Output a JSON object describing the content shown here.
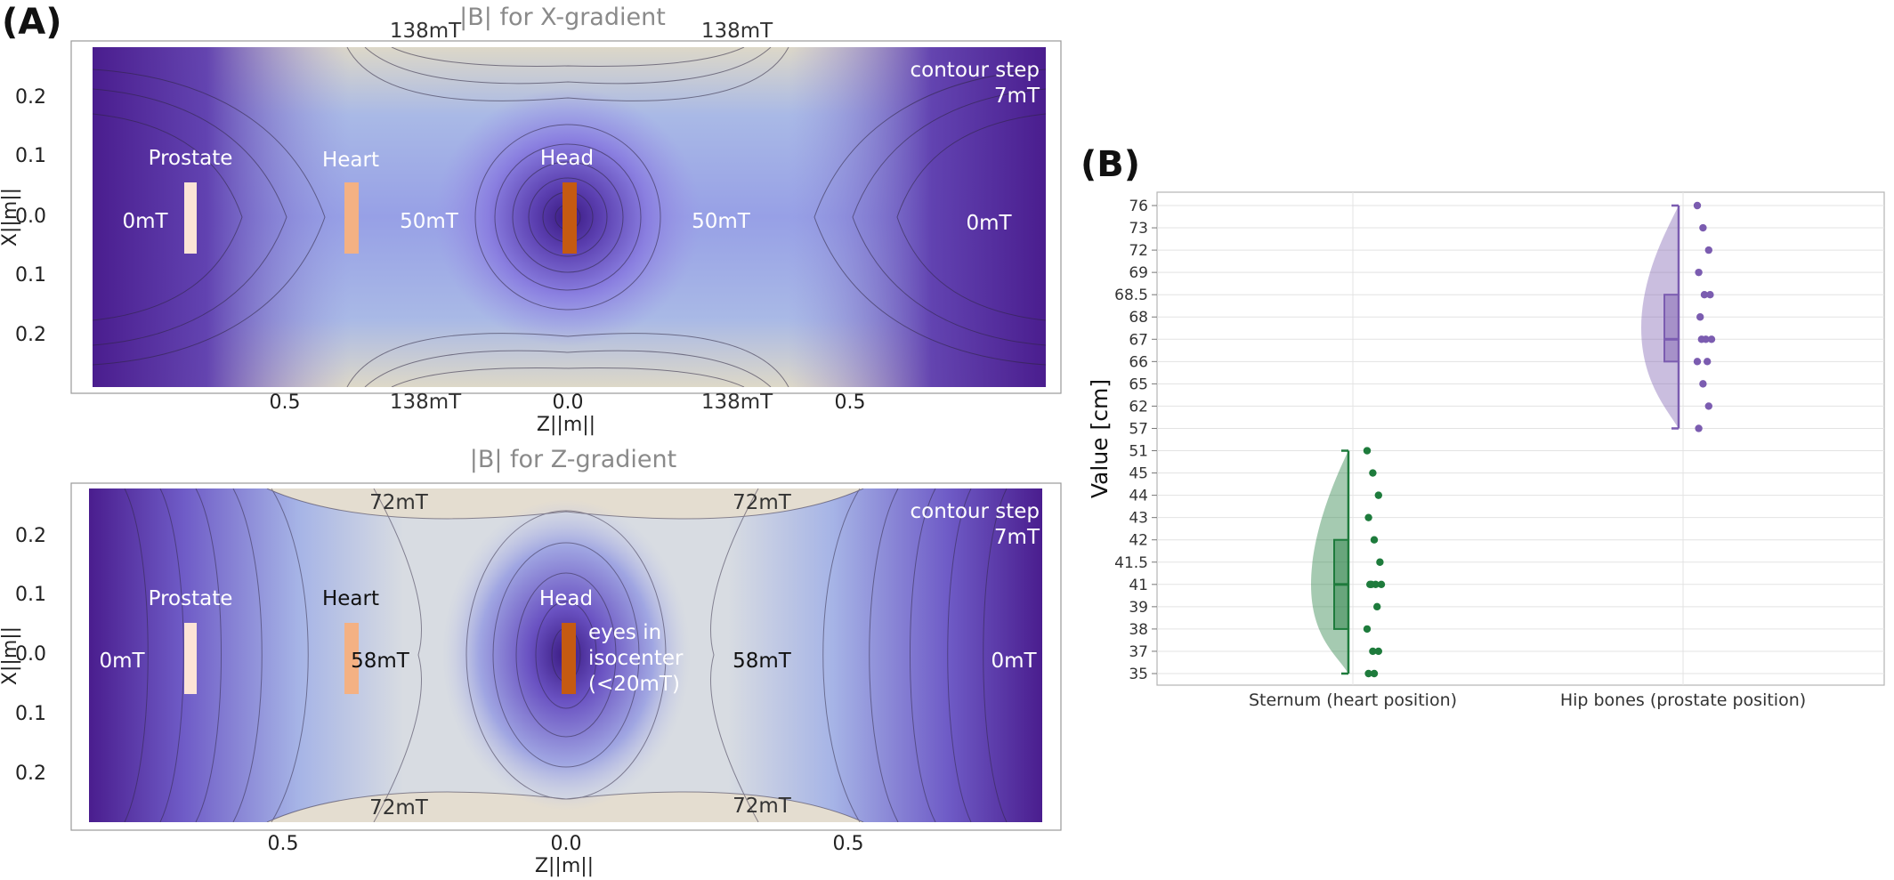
{
  "panels": {
    "a": "(A)",
    "b": "(B)"
  },
  "map_x": {
    "title": "|B| for X-gradient",
    "xlabel": "Z||m||",
    "ylabel": "X||m||",
    "xticks": [
      "0.5",
      "0.0",
      "0.5"
    ],
    "yticks": [
      "0.2",
      "0.1",
      "0.0",
      "0.1",
      "0.2"
    ],
    "contour_note": [
      "contour step",
      "7mT"
    ],
    "organs": [
      "Prostate",
      "Heart",
      "Head"
    ],
    "field_labels": {
      "top_left": "138mT",
      "top_right": "138mT",
      "bottom_left": "138mT",
      "bottom_right": "138mT",
      "left": "0mT",
      "mid_left": "50mT",
      "mid_right": "50mT",
      "right": "0mT"
    }
  },
  "map_z": {
    "title": "|B| for Z-gradient",
    "xlabel": "Z||m||",
    "ylabel": "X||m||",
    "xticks": [
      "0.5",
      "0.0",
      "0.5"
    ],
    "yticks": [
      "0.2",
      "0.1",
      "0.0",
      "0.1",
      "0.2"
    ],
    "contour_note": [
      "contour step",
      "7mT"
    ],
    "organs": [
      "Prostate",
      "Heart",
      "Head"
    ],
    "eyes_note": [
      "eyes in",
      "isocenter",
      "(<20mT)"
    ],
    "field_labels": {
      "top_left": "72mT",
      "top_right": "72mT",
      "bottom_left": "72mT",
      "bottom_right": "72mT",
      "left": "0mT",
      "mid_left": "58mT",
      "mid_right": "58mT",
      "right": "0mT"
    }
  },
  "colors": {
    "organ_prostate": "#fce4d6",
    "organ_heart": "#f4b183",
    "organ_head": "#c55a11",
    "green": "#1e7b3c",
    "purple": "#7b5cb0"
  },
  "chart_data": {
    "type": "violin",
    "ylabel": "Value [cm]",
    "categories": [
      "Sternum (heart position)",
      "Hip bones (prostate position)"
    ],
    "y_tick_labels": [
      "35",
      "37",
      "38",
      "39",
      "41",
      "41.5",
      "42",
      "43",
      "44",
      "45",
      "51",
      "57",
      "62",
      "65",
      "66",
      "67",
      "68",
      "68.5",
      "69",
      "72",
      "73",
      "76"
    ],
    "series": [
      {
        "category": "Sternum (heart position)",
        "color": "#1e7b3c",
        "points": [
          51,
          45,
          44,
          43,
          42,
          41.5,
          41,
          41,
          41,
          41,
          39,
          38,
          37,
          37,
          35,
          35
        ],
        "box": {
          "min": 35,
          "q1": 38,
          "median": 41,
          "q3": 42,
          "max": 51
        }
      },
      {
        "category": "Hip bones (prostate position)",
        "color": "#7b5cb0",
        "points": [
          76,
          73,
          72,
          69,
          68.5,
          68.5,
          68,
          67,
          67,
          67,
          66,
          66,
          65,
          62,
          57
        ],
        "box": {
          "min": 57,
          "q1": 66,
          "median": 67,
          "q3": 68.5,
          "max": 76
        }
      }
    ]
  }
}
